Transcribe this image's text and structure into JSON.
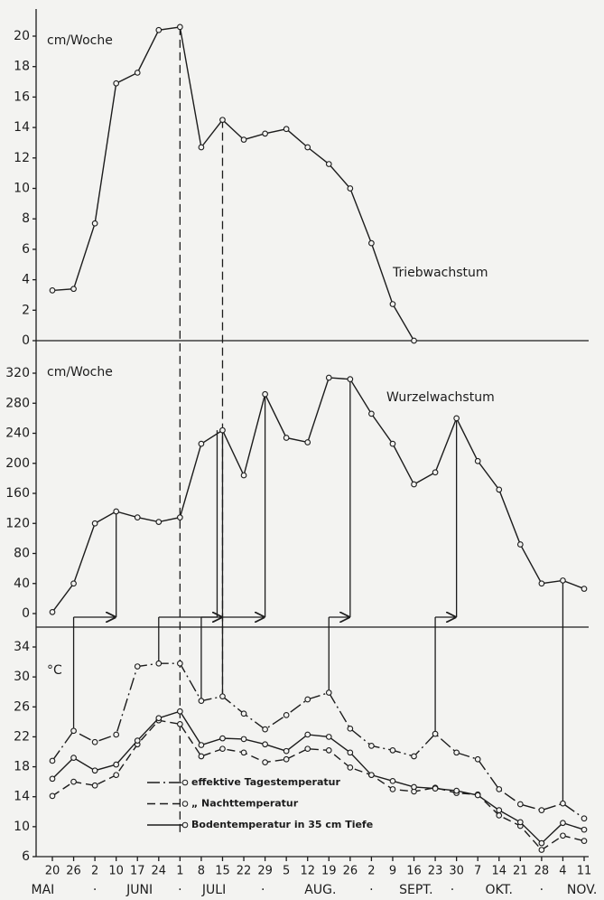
{
  "chart_data": [
    {
      "type": "line",
      "unit_label": "cm/Woche",
      "ylim": [
        0,
        20
      ],
      "yticks": [
        0,
        2,
        4,
        6,
        8,
        10,
        12,
        14,
        16,
        18,
        20
      ],
      "series": [
        {
          "name": "Triebwachstum",
          "color": "#1c1c1c",
          "linestyle": "solid",
          "values": [
            3.3,
            3.4,
            7.7,
            16.9,
            17.6,
            20.4,
            20.6,
            12.7,
            14.5,
            13.2,
            13.6,
            13.9,
            12.7,
            11.6,
            10.0,
            6.4,
            2.4,
            0,
            null,
            null,
            null,
            null,
            null,
            null,
            null,
            null
          ]
        }
      ]
    },
    {
      "type": "line",
      "unit_label": "cm/Woche",
      "ylim": [
        0,
        320
      ],
      "yticks": [
        0,
        40,
        80,
        120,
        160,
        200,
        240,
        280,
        320
      ],
      "series": [
        {
          "name": "Wurzelwachstum",
          "color": "#1c1c1c",
          "linestyle": "solid",
          "values": [
            2,
            40,
            120,
            136,
            128,
            122,
            128,
            226,
            244,
            184,
            292,
            234,
            228,
            314,
            312,
            266,
            226,
            172,
            188,
            260,
            203,
            165,
            92,
            40,
            44,
            33
          ]
        }
      ]
    },
    {
      "type": "line",
      "unit_label": "°C",
      "ylim": [
        6,
        34
      ],
      "yticks": [
        6,
        10,
        14,
        18,
        22,
        26,
        30,
        34
      ],
      "categories": [
        "20",
        "26",
        "2",
        "10",
        "17",
        "24",
        "1",
        "8",
        "15",
        "22",
        "29",
        "5",
        "12",
        "19",
        "26",
        "2",
        "9",
        "16",
        "23",
        "30",
        "7",
        "14",
        "21",
        "28",
        "4",
        "11"
      ],
      "months": [
        "MAI",
        "·",
        "JUNI",
        "·",
        "JULI",
        "·",
        "AUG.",
        "·",
        "SEPT.",
        "·",
        "OKT.",
        "·",
        "NOV."
      ],
      "series": [
        {
          "name": "effektive Tagestemperatur",
          "color": "#1c1c1c",
          "linestyle": "longdash",
          "values": [
            18.8,
            22.8,
            21.3,
            22.3,
            31.4,
            31.8,
            31.8,
            26.8,
            27.4,
            25.1,
            23.0,
            24.9,
            27.0,
            27.9,
            23.1,
            20.8,
            20.2,
            19.4,
            22.4,
            19.9,
            19.0,
            15.0,
            13.0,
            12.2,
            13.1,
            11.1
          ]
        },
        {
          "name": "„ Nachttemperatur",
          "color": "#1c1c1c",
          "linestyle": "dashed",
          "values": [
            14.1,
            16.0,
            15.5,
            16.9,
            21.0,
            24.2,
            23.7,
            19.4,
            20.4,
            19.9,
            18.6,
            19.0,
            20.4,
            20.2,
            17.9,
            16.9,
            15.0,
            14.7,
            15.2,
            14.5,
            14.3,
            11.5,
            10.1,
            6.9,
            8.8,
            8.1
          ]
        },
        {
          "name": "Bodentemperatur in 35 cm Tiefe",
          "color": "#1c1c1c",
          "linestyle": "solid",
          "values": [
            16.4,
            19.2,
            17.5,
            18.3,
            21.5,
            24.5,
            25.4,
            20.9,
            21.8,
            21.7,
            21.0,
            20.1,
            22.3,
            22.0,
            19.9,
            16.9,
            16.1,
            15.3,
            15.1,
            14.8,
            14.2,
            12.2,
            10.6,
            7.8,
            10.5,
            9.6
          ]
        }
      ]
    }
  ]
}
